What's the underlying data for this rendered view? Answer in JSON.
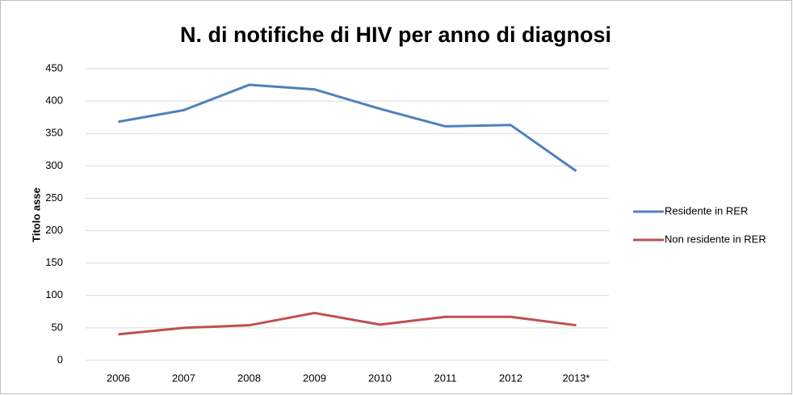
{
  "chart_data": {
    "type": "line",
    "title": "N. di notifiche di HIV per anno di diagnosi",
    "y_label": "Titolo asse",
    "categories": [
      "2006",
      "2007",
      "2008",
      "2009",
      "2010",
      "2011",
      "2012",
      "2013*"
    ],
    "series": [
      {
        "name": "Residente in RER",
        "color": "#4f81bd",
        "values": [
          368,
          386,
          425,
          418,
          388,
          361,
          363,
          292
        ]
      },
      {
        "name": "Non residente in RER",
        "color": "#c0504d",
        "values": [
          40,
          50,
          54,
          73,
          55,
          67,
          67,
          54
        ]
      }
    ],
    "ylim": [
      0,
      450
    ],
    "yticks": [
      0,
      50,
      100,
      150,
      200,
      250,
      300,
      350,
      400,
      450
    ],
    "grid": true,
    "legend": "right"
  }
}
